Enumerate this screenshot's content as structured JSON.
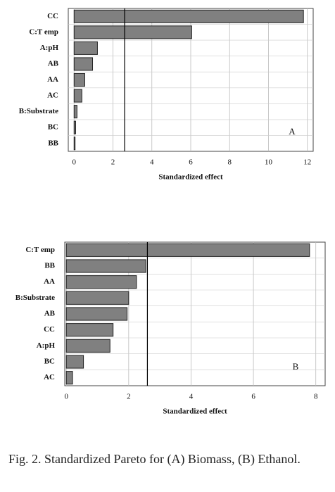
{
  "chart_data": [
    {
      "type": "bar",
      "orientation": "horizontal",
      "xlabel": "Standardized effect",
      "annotation": "A",
      "categories": [
        "CC",
        "C:T emp",
        "A:pH",
        "AB",
        "AA",
        "AC",
        "B:Substrate",
        "BC",
        "BB"
      ],
      "values": [
        11.8,
        6.05,
        1.2,
        0.95,
        0.55,
        0.4,
        0.15,
        0.08,
        0.05
      ],
      "color": "#808080",
      "reference_line": 2.6,
      "xlim": [
        -0.3,
        12.3
      ],
      "xticks": [
        0,
        2,
        4,
        6,
        8,
        10,
        12
      ],
      "grid": true
    },
    {
      "type": "bar",
      "orientation": "horizontal",
      "xlabel": "Standardized effect",
      "annotation": "B",
      "categories": [
        "C:T emp",
        "BB",
        "AA",
        "B:Substrate",
        "AB",
        "CC",
        "A:pH",
        "BC",
        "AC"
      ],
      "values": [
        7.8,
        2.55,
        2.25,
        2.0,
        1.95,
        1.5,
        1.4,
        0.55,
        0.2
      ],
      "color": "#808080",
      "reference_line": 2.6,
      "xlim": [
        -0.05,
        8.3
      ],
      "xticks": [
        0,
        2,
        4,
        6,
        8
      ],
      "grid": true
    }
  ],
  "caption": "Fig. 2. Standardized Pareto for (A) Biomass, (B) Ethanol."
}
